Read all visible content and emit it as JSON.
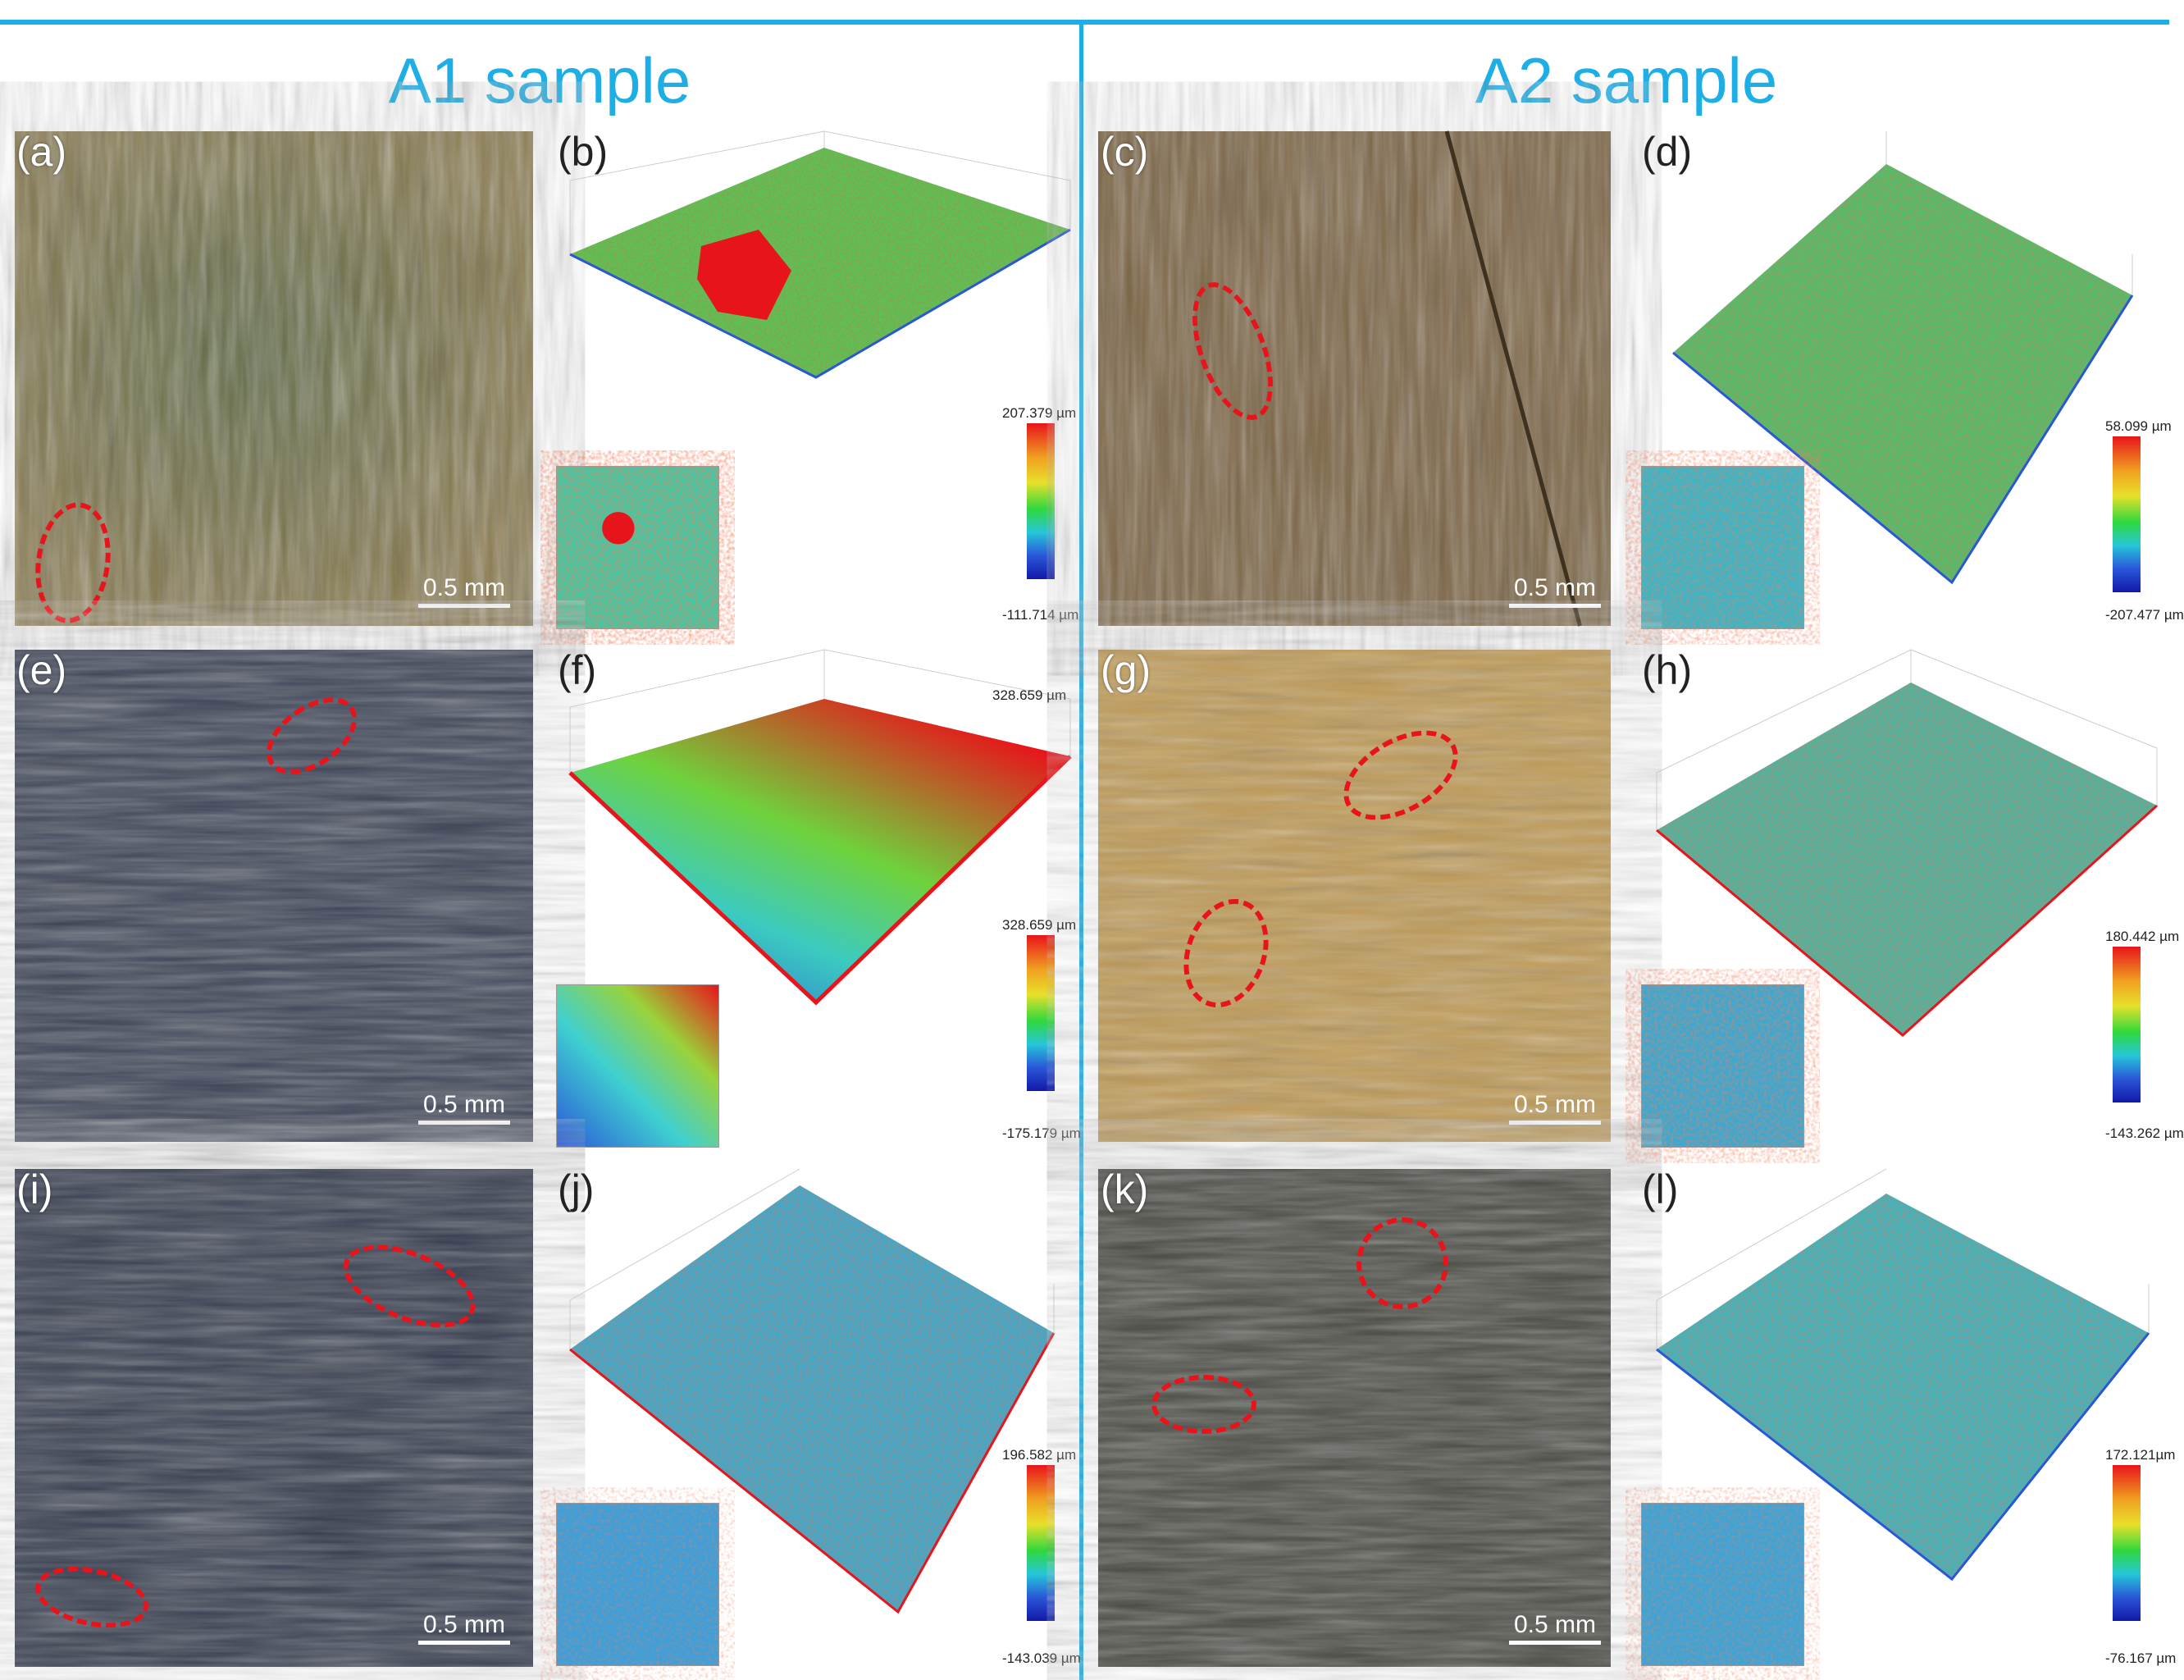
{
  "sections": {
    "left": "A1 sample",
    "right": "A2 sample"
  },
  "scale_bar": "0.5 mm",
  "panels": {
    "a": {
      "label": "(a)"
    },
    "b": {
      "label": "(b)",
      "max": "207.379 µm",
      "min": "-111.714 µm"
    },
    "c": {
      "label": "(c)"
    },
    "d": {
      "label": "(d)",
      "max": "58.099 µm",
      "min": "-207.477 µm"
    },
    "e": {
      "label": "(e)"
    },
    "f": {
      "label": "(f)",
      "max": "328.659 µm",
      "min": "-175.179 µm",
      "top_note": "328.659 µm"
    },
    "g": {
      "label": "(g)"
    },
    "h": {
      "label": "(h)",
      "max": "180.442 µm",
      "min": "-143.262 µm"
    },
    "i": {
      "label": "(i)"
    },
    "j": {
      "label": "(j)",
      "max": "196.582 µm",
      "min": "-143.039 µm"
    },
    "k": {
      "label": "(k)"
    },
    "l": {
      "label": "(l)",
      "max": "172.121µm",
      "min": "-76.167 µm"
    }
  },
  "colors": {
    "accent": "#1eaee6",
    "marker": "#e8141b"
  }
}
